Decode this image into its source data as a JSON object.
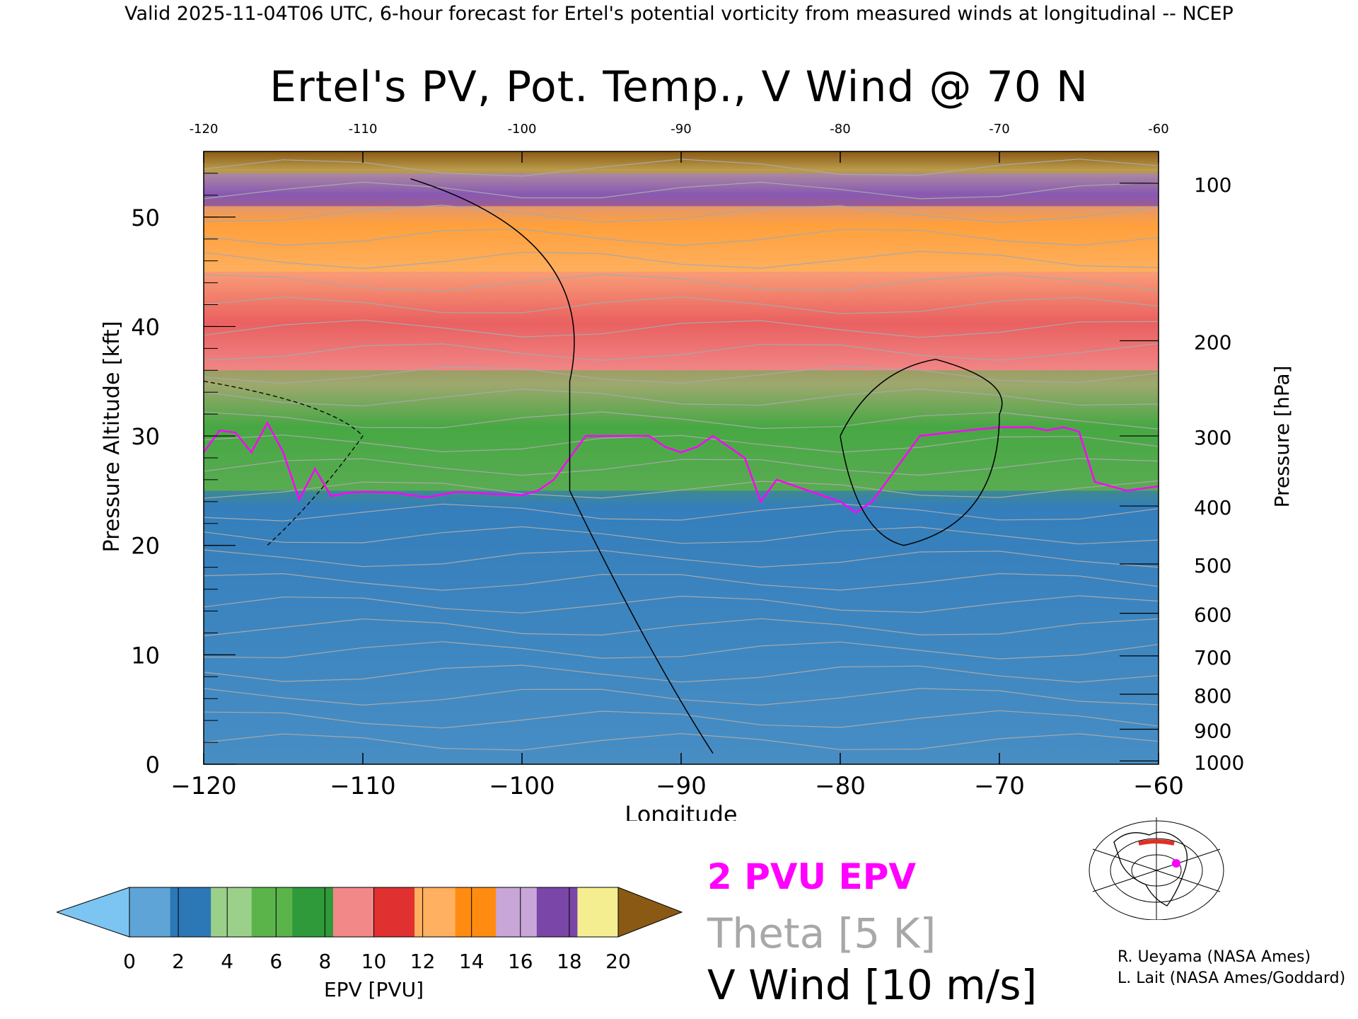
{
  "header": "Valid 2025-11-04T06 UTC, 6-hour forecast for Ertel's potential vorticity from measured winds at longitudinal -- NCEP",
  "title": "Ertel's PV, Pot. Temp., V Wind @ 70 N",
  "colors": {
    "epv_2pvu": "#ff00ff",
    "theta": "#a8a8a8",
    "wind": "#000000"
  },
  "chart_data": {
    "type": "heatmap",
    "title": "Ertel's PV, Pot. Temp., V Wind @ 70 N",
    "xlabel": "Longitude",
    "ylabel": "Pressure Altitude [kft]",
    "y2label": "Pressure [hPa]",
    "xlim": [
      -120,
      -60
    ],
    "ylim": [
      0,
      56
    ],
    "x_ticks": [
      -120,
      -110,
      -100,
      -90,
      -80,
      -70,
      -60
    ],
    "x_tick_labels": [
      "−120",
      "−110",
      "−100",
      "−90",
      "−80",
      "−70",
      "−60"
    ],
    "x_top_tick_labels": [
      "-120",
      "-110",
      "-100",
      "-90",
      "-80",
      "-70",
      "-60"
    ],
    "y_ticks": [
      0,
      10,
      20,
      30,
      40,
      50
    ],
    "y_tick_labels": [
      "0",
      "10",
      "20",
      "30",
      "40",
      "50"
    ],
    "pressure_ticks": [
      {
        "hpa": "100",
        "kft": 53.1
      },
      {
        "hpa": "200",
        "kft": 38.7
      },
      {
        "hpa": "300",
        "kft": 30.0
      },
      {
        "hpa": "400",
        "kft": 23.6
      },
      {
        "hpa": "500",
        "kft": 18.3
      },
      {
        "hpa": "600",
        "kft": 13.8
      },
      {
        "hpa": "700",
        "kft": 9.9
      },
      {
        "hpa": "800",
        "kft": 6.4
      },
      {
        "hpa": "900",
        "kft": 3.2
      },
      {
        "hpa": "1000",
        "kft": 0.3
      }
    ],
    "epv_bands_top_kft": [
      {
        "epv_pvu": 1,
        "from": 0,
        "to": 25
      },
      {
        "epv_pvu": 5,
        "from": 25,
        "to": 36
      },
      {
        "epv_pvu": 9,
        "from": 36,
        "to": 45
      },
      {
        "epv_pvu": 12,
        "from": 45,
        "to": 51
      },
      {
        "epv_pvu": 16,
        "from": 51,
        "to": 54
      },
      {
        "epv_pvu": 20,
        "from": 54,
        "to": 56
      }
    ],
    "pv2_contour": {
      "lon": [
        -120,
        -119,
        -118,
        -117,
        -116,
        -115,
        -114,
        -113,
        -112,
        -111,
        -110,
        -108,
        -106,
        -104,
        -102,
        -100,
        -99,
        -98,
        -96,
        -94,
        -92,
        -91,
        -90,
        -89,
        -88,
        -86,
        -85,
        -84,
        -82,
        -80,
        -79,
        -78,
        -77,
        -75,
        -72,
        -70,
        -68,
        -67,
        -66,
        -65,
        -64,
        -62,
        -60
      ],
      "kft": [
        28.5,
        30.5,
        30.3,
        28.5,
        31.2,
        28.5,
        24.2,
        27.0,
        24.5,
        24.8,
        24.9,
        24.8,
        24.4,
        24.9,
        24.7,
        24.6,
        25.0,
        26.0,
        30.0,
        30.0,
        30.0,
        29.0,
        28.5,
        29.0,
        30.0,
        28.0,
        24.0,
        26.0,
        25.0,
        24.0,
        23.0,
        24.0,
        26.0,
        30.0,
        30.5,
        30.8,
        30.8,
        30.5,
        30.8,
        30.4,
        25.8,
        25.0,
        25.4
      ]
    },
    "colorbar": {
      "label": "EPV [PVU]",
      "tick_labels": [
        "0",
        "2",
        "4",
        "6",
        "8",
        "10",
        "12",
        "14",
        "16",
        "18",
        "20"
      ],
      "colors": [
        "#7cc4f2",
        "#5fa4d6",
        "#2c78b6",
        "#9bd08a",
        "#5ab44a",
        "#2f9a3a",
        "#f28888",
        "#e03030",
        "#ffb060",
        "#ff8c10",
        "#c8a6d8",
        "#7a46a8",
        "#f4ee90",
        "#8a5a14"
      ]
    }
  },
  "legend": {
    "epv": "2 PVU EPV",
    "theta": "Theta [5 K]",
    "wind": "V Wind [10 m/s]"
  },
  "credits": {
    "line1": "R. Ueyama (NASA Ames)",
    "line2": "L. Lait (NASA Ames/Goddard)"
  }
}
